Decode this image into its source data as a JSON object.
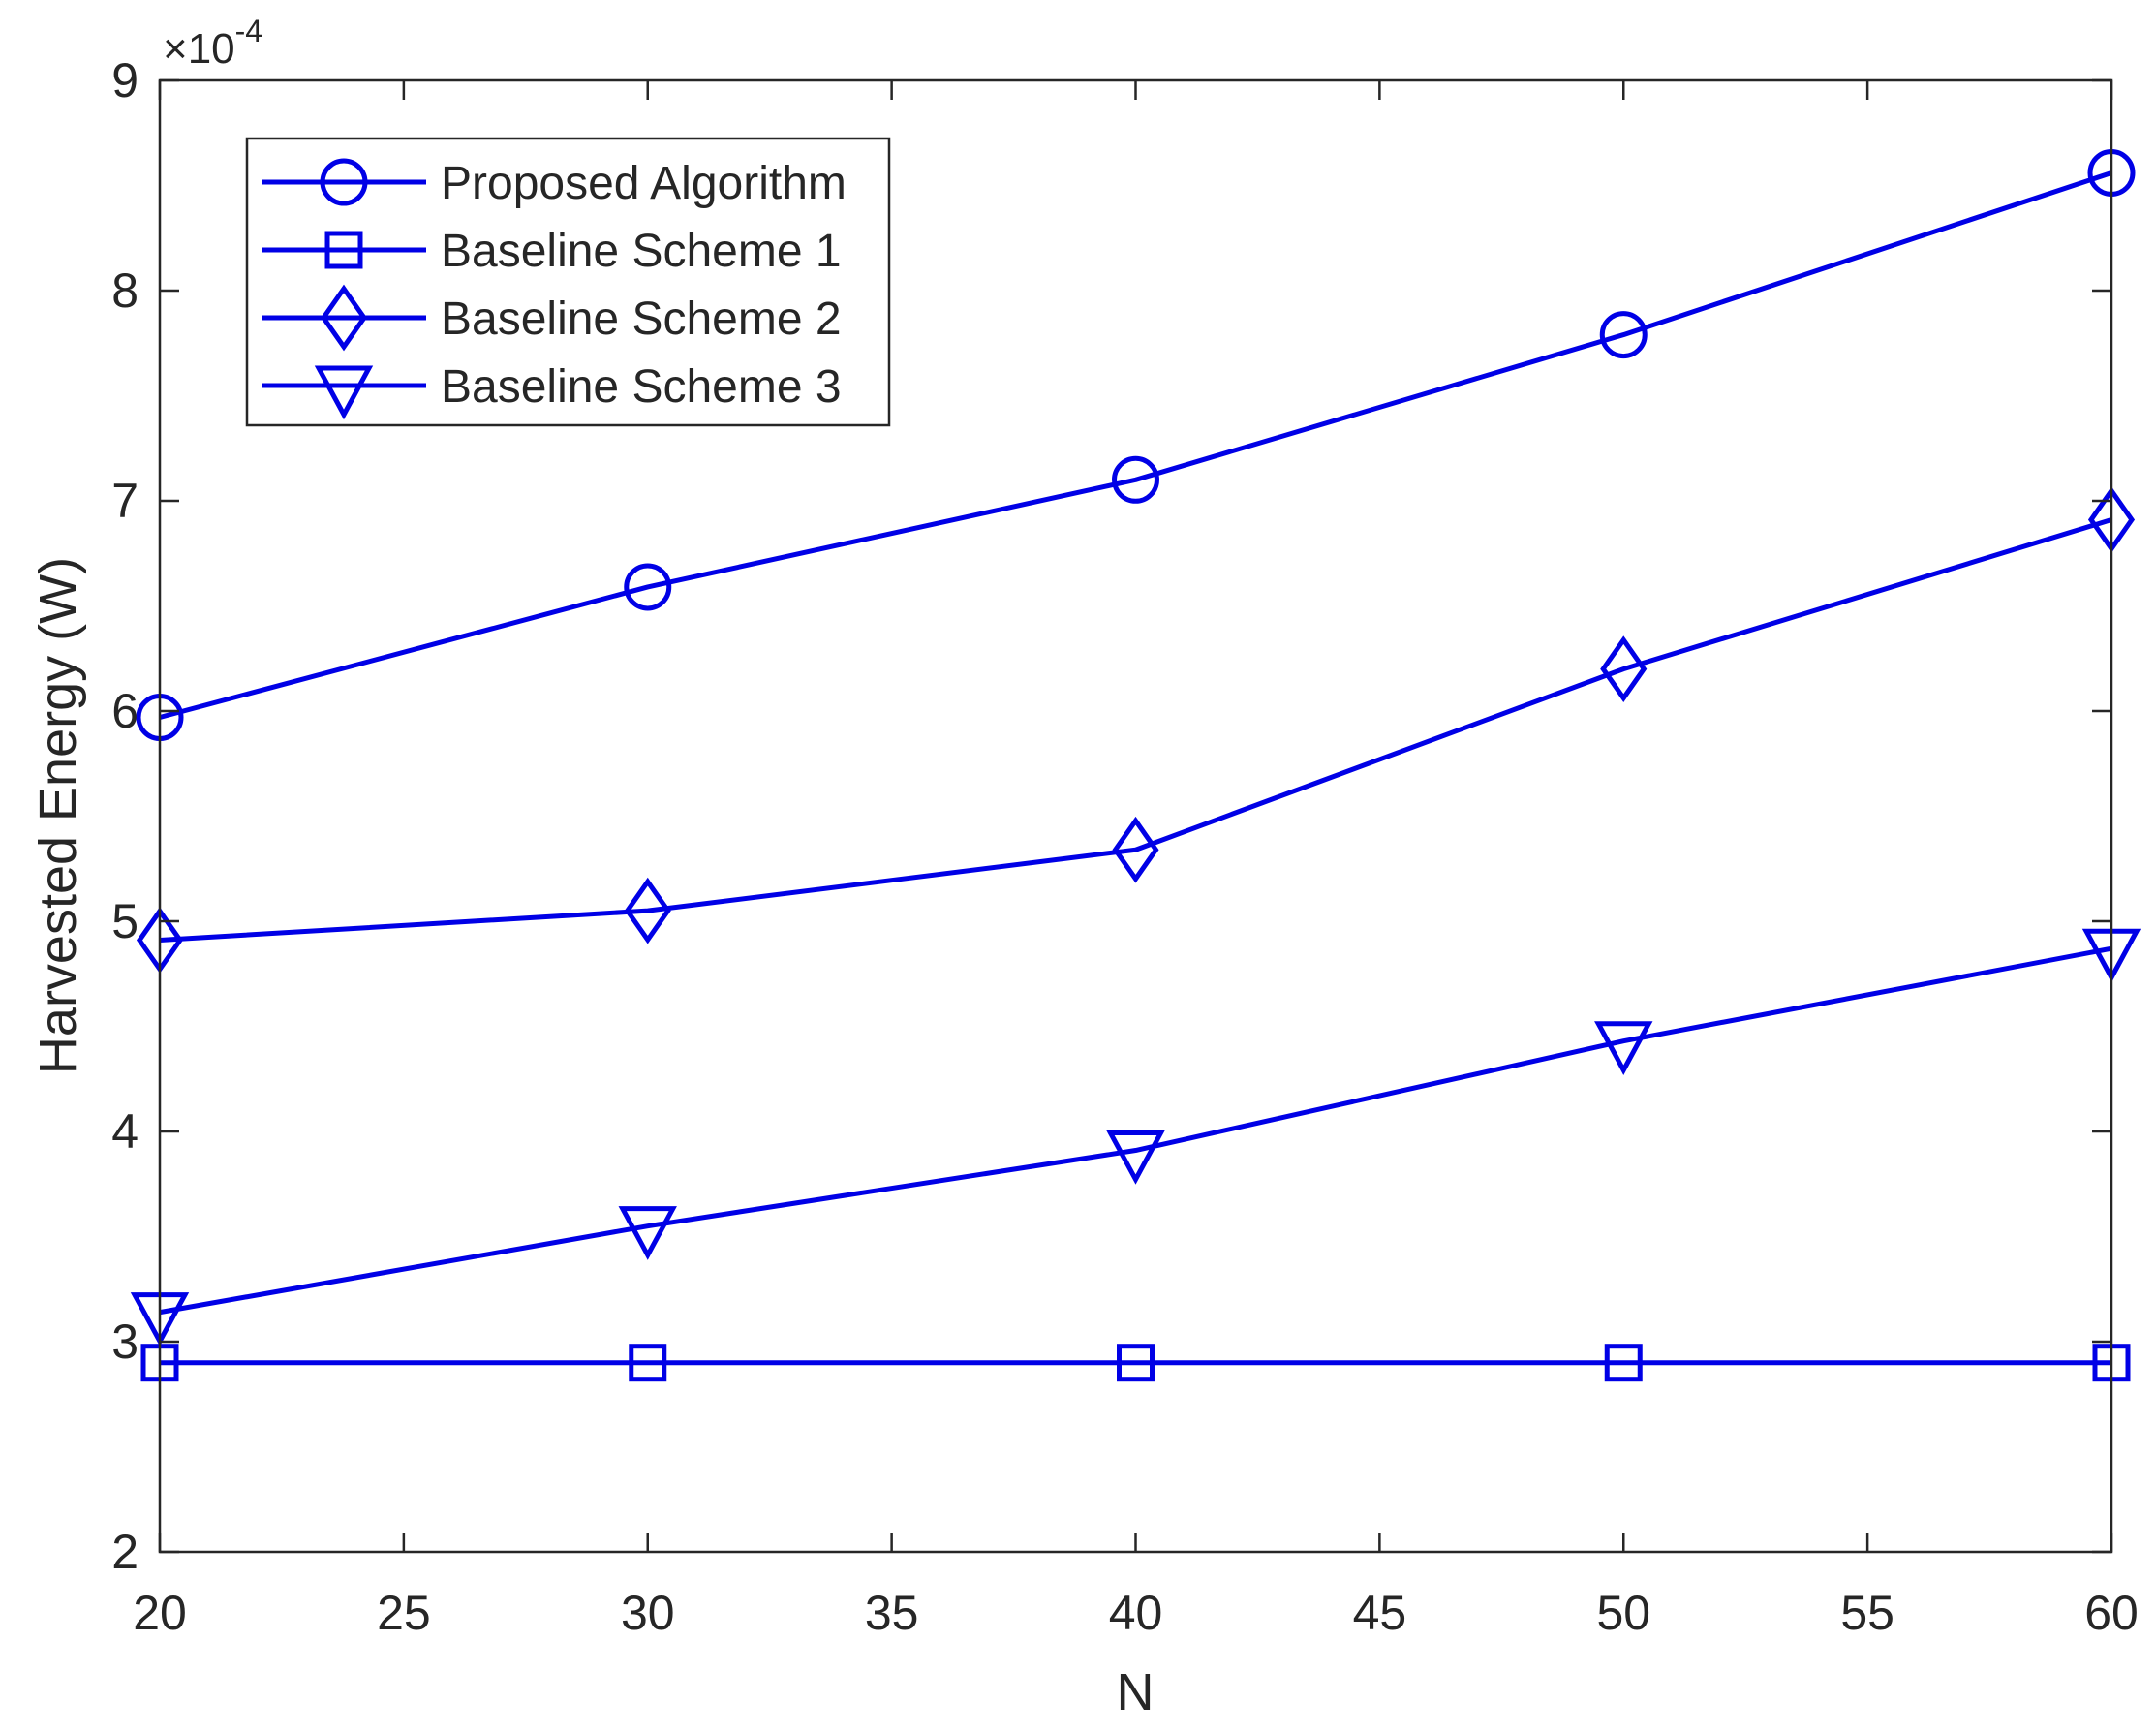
{
  "chart_data": {
    "type": "line",
    "x_axis": {
      "label": "N",
      "range": [
        20,
        60
      ],
      "ticks": [
        20,
        25,
        30,
        35,
        40,
        45,
        50,
        55,
        60
      ]
    },
    "y_axis": {
      "label": "Harvested Energy (W)",
      "range": [
        2,
        9
      ],
      "ticks": [
        2,
        3,
        4,
        5,
        6,
        7,
        8,
        9
      ],
      "exponent_label": "×10",
      "exponent_power": "-4"
    },
    "grid": false,
    "legend_position": "top-left",
    "line_color": "#0000e6",
    "x": [
      20,
      30,
      40,
      50,
      60
    ],
    "series": [
      {
        "name": "Proposed Algorithm",
        "marker": "circle",
        "values": [
          5.97,
          6.59,
          7.1,
          7.79,
          8.56
        ]
      },
      {
        "name": "Baseline Scheme 1",
        "marker": "square",
        "values": [
          2.9,
          2.9,
          2.9,
          2.9,
          2.9
        ]
      },
      {
        "name": "Baseline Scheme 2",
        "marker": "diamond",
        "values": [
          4.91,
          5.05,
          5.34,
          6.2,
          6.91
        ]
      },
      {
        "name": "Baseline Scheme 3",
        "marker": "triangle-down",
        "values": [
          3.14,
          3.55,
          3.91,
          4.43,
          4.87
        ]
      }
    ]
  }
}
